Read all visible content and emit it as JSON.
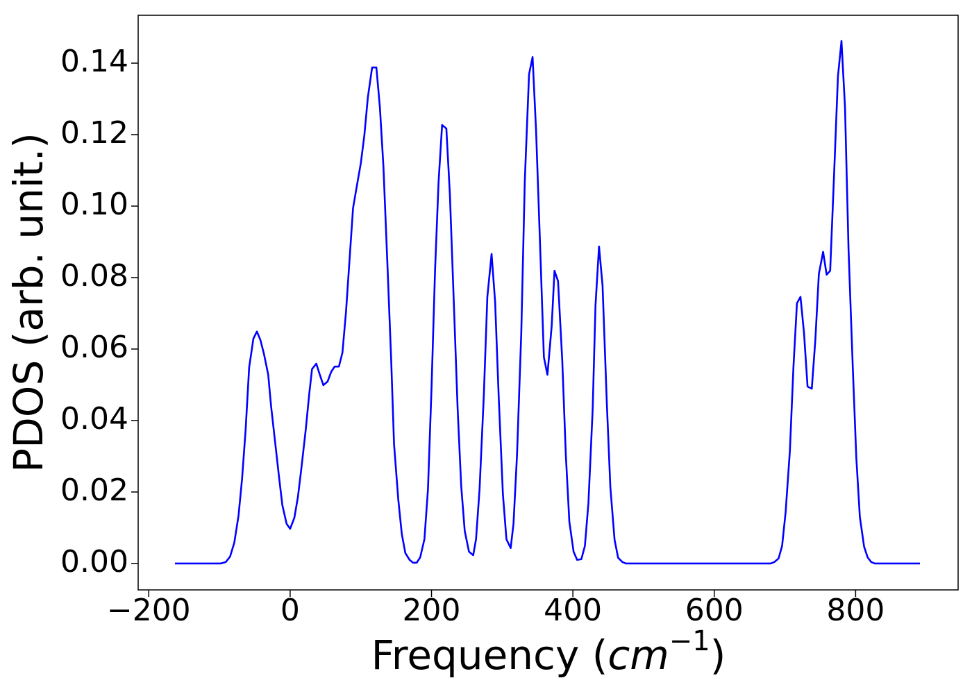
{
  "chart_data": {
    "type": "line",
    "xlabel": [
      "Frequency (",
      "cm",
      "−1",
      ")"
    ],
    "ylabel": "PDOS (arb. unit.)",
    "xlim": [
      -215,
      945
    ],
    "ylim": [
      -0.0074,
      0.1534
    ],
    "xticks": [
      {
        "value": -200,
        "label": "−200"
      },
      0,
      200,
      400,
      600,
      800
    ],
    "yticks": [
      {
        "value": 0,
        "label": "0.00"
      },
      0.02,
      0.04,
      0.06,
      0.08,
      {
        "value": 0.1,
        "label": "0.10"
      },
      0.12,
      0.14
    ],
    "grid": false,
    "x": [
      -163,
      -98,
      -91,
      -85,
      -79,
      -73,
      -68,
      -63,
      -58,
      -52,
      -47,
      -42,
      -37,
      -31,
      -27,
      -22,
      -16,
      -11,
      -5,
      0,
      6,
      11,
      16,
      22,
      27,
      31,
      37,
      42,
      47,
      53,
      58,
      63,
      69,
      74,
      79,
      85,
      89,
      94,
      100,
      105,
      110,
      116,
      122,
      127,
      132,
      138,
      143,
      147,
      153,
      158,
      163,
      169,
      174,
      179,
      184,
      190,
      195,
      200,
      205,
      210,
      215,
      221,
      226,
      231,
      237,
      242,
      247,
      253,
      259,
      263,
      268,
      274,
      279,
      285,
      290,
      295,
      301,
      306,
      312,
      316,
      321,
      327,
      332,
      338,
      343,
      348,
      354,
      359,
      364,
      370,
      374,
      379,
      385,
      390,
      395,
      401,
      406,
      412,
      417,
      422,
      428,
      432,
      437,
      442,
      448,
      453,
      459,
      464,
      470,
      475,
      680,
      685,
      691,
      696,
      701,
      707,
      712,
      717,
      722,
      727,
      732,
      738,
      743,
      748,
      754,
      759,
      764,
      769,
      775,
      780,
      785,
      790,
      796,
      801,
      806,
      812,
      817,
      822,
      827,
      891
    ],
    "series": [
      {
        "name": "PDOS",
        "color": "#0000ff",
        "values": [
          0,
          0,
          0.0004,
          0.0019,
          0.0058,
          0.0134,
          0.0237,
          0.0373,
          0.0548,
          0.0629,
          0.0649,
          0.0625,
          0.0586,
          0.0528,
          0.0441,
          0.0353,
          0.0247,
          0.0163,
          0.0111,
          0.0097,
          0.0128,
          0.0186,
          0.0268,
          0.0373,
          0.0474,
          0.0544,
          0.0559,
          0.0528,
          0.0499,
          0.0509,
          0.0536,
          0.0551,
          0.0551,
          0.059,
          0.0703,
          0.0878,
          0.0994,
          0.1052,
          0.112,
          0.1198,
          0.1305,
          0.1388,
          0.1388,
          0.1276,
          0.111,
          0.0819,
          0.0567,
          0.0334,
          0.0179,
          0.0082,
          0.0029,
          0.001,
          0.0002,
          0.0002,
          0.0017,
          0.0068,
          0.0208,
          0.0489,
          0.0819,
          0.1068,
          0.1227,
          0.1217,
          0.1033,
          0.0761,
          0.0431,
          0.0217,
          0.0091,
          0.0033,
          0.0023,
          0.0068,
          0.0208,
          0.047,
          0.0746,
          0.0866,
          0.0732,
          0.047,
          0.0194,
          0.0068,
          0.0043,
          0.0111,
          0.0305,
          0.0645,
          0.1072,
          0.1369,
          0.1417,
          0.1208,
          0.0868,
          0.0577,
          0.0528,
          0.0664,
          0.0819,
          0.079,
          0.0567,
          0.0305,
          0.0117,
          0.0033,
          0.001,
          0.0012,
          0.0049,
          0.0169,
          0.0431,
          0.0722,
          0.0887,
          0.0777,
          0.045,
          0.0214,
          0.0066,
          0.0016,
          0.0004,
          0,
          0,
          0.0004,
          0.0014,
          0.0049,
          0.0144,
          0.0315,
          0.0548,
          0.0728,
          0.0746,
          0.0645,
          0.0495,
          0.0489,
          0.0625,
          0.081,
          0.0872,
          0.0808,
          0.0819,
          0.1062,
          0.1363,
          0.1462,
          0.1276,
          0.0878,
          0.0548,
          0.0295,
          0.013,
          0.0047,
          0.0017,
          0.0004,
          0,
          0
        ]
      }
    ]
  }
}
